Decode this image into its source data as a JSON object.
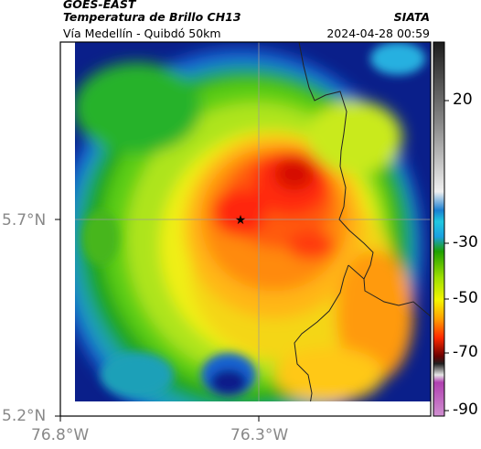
{
  "header": {
    "satellite": "GOES-EAST",
    "product": "Temperatura de Brillo CH13",
    "region": "Vía Medellín - Quibdó 50km",
    "agency": "SIATA",
    "datetime": "2024-04-28 00:59"
  },
  "axes": {
    "lat_labels": [
      "5.7°N",
      "5.2°N"
    ],
    "lon_labels": [
      "76.8°W",
      "76.3°W"
    ]
  },
  "colorbar": {
    "labels": [
      "20",
      "-30",
      "-50",
      "-70",
      "-90"
    ]
  },
  "map": {
    "marker": "star-icon",
    "colors": {
      "background": "#0a1f8a",
      "frame": "#000000",
      "gridline": "#9a9a9a",
      "border": "#222222"
    }
  }
}
